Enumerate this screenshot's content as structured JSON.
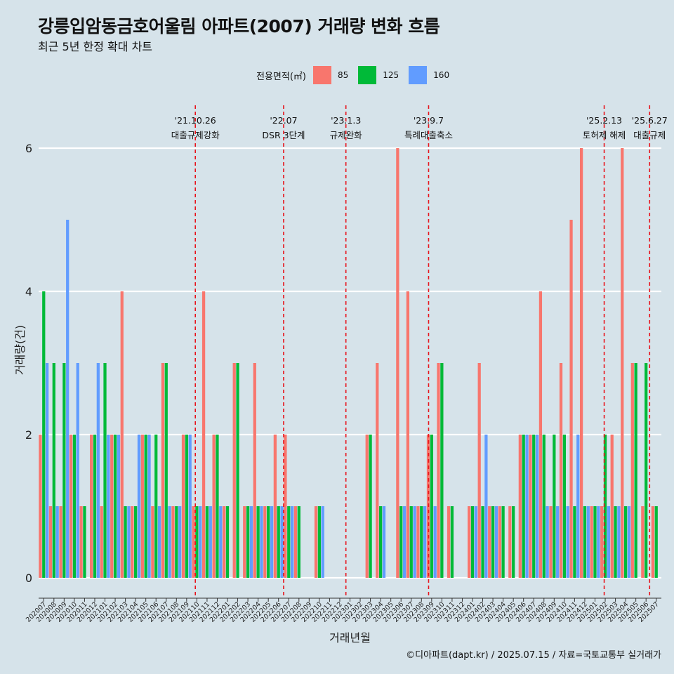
{
  "title": "강릉입암동금호어울림 아파트(2007) 거래량 변화 흐름",
  "subtitle": "최근 5년 한정 확대 차트",
  "caption": "©디아파트(dapt.kr) / 2025.07.15 / 자료=국토교통부 실거래가",
  "legend": {
    "title": "전용면적(㎡)",
    "items": [
      {
        "label": "85",
        "color": "#f8766d"
      },
      {
        "label": "125",
        "color": "#00ba38"
      },
      {
        "label": "160",
        "color": "#619cff"
      }
    ]
  },
  "chart_data": {
    "type": "bar",
    "xlabel": "거래년월",
    "ylabel": "거래량(건)",
    "ylim": [
      0,
      6
    ],
    "yticks": [
      0,
      2,
      4,
      6
    ],
    "grid": true,
    "legend_position": "top",
    "series_names": [
      "85",
      "125",
      "160"
    ],
    "categories": [
      "202007",
      "202008",
      "202009",
      "202010",
      "202011",
      "202012",
      "202101",
      "202102",
      "202103",
      "202104",
      "202105",
      "202106",
      "202107",
      "202108",
      "202109",
      "202110",
      "202111",
      "202112",
      "202201",
      "202202",
      "202203",
      "202204",
      "202205",
      "202206",
      "202207",
      "202208",
      "202209",
      "202210",
      "202211",
      "202212",
      "202301",
      "202302",
      "202303",
      "202304",
      "202305",
      "202306",
      "202307",
      "202308",
      "202309",
      "202310",
      "202311",
      "202312",
      "202401",
      "202402",
      "202403",
      "202404",
      "202405",
      "202406",
      "202407",
      "202408",
      "202409",
      "202410",
      "202411",
      "202412",
      "202501",
      "202502",
      "202503",
      "202504",
      "202505",
      "202506",
      "202507"
    ],
    "values": [
      [
        2,
        4,
        3
      ],
      [
        1,
        3,
        1
      ],
      [
        1,
        3,
        5
      ],
      [
        2,
        2,
        3
      ],
      [
        1,
        1,
        0
      ],
      [
        2,
        2,
        3
      ],
      [
        1,
        3,
        2
      ],
      [
        2,
        2,
        2
      ],
      [
        4,
        1,
        1
      ],
      [
        1,
        1,
        2
      ],
      [
        2,
        2,
        2
      ],
      [
        1,
        2,
        1
      ],
      [
        3,
        3,
        1
      ],
      [
        1,
        1,
        1
      ],
      [
        2,
        2,
        2
      ],
      [
        1,
        1,
        1
      ],
      [
        4,
        1,
        1
      ],
      [
        2,
        2,
        1
      ],
      [
        1,
        1,
        0
      ],
      [
        3,
        3,
        0
      ],
      [
        1,
        1,
        1
      ],
      [
        3,
        1,
        1
      ],
      [
        1,
        1,
        1
      ],
      [
        2,
        1,
        1
      ],
      [
        2,
        1,
        1
      ],
      [
        1,
        1,
        0
      ],
      [
        0,
        0,
        0
      ],
      [
        1,
        1,
        1
      ],
      [
        0,
        0,
        0
      ],
      [
        0,
        0,
        0
      ],
      [
        0,
        0,
        0
      ],
      [
        0,
        0,
        0
      ],
      [
        2,
        2,
        0
      ],
      [
        3,
        1,
        1
      ],
      [
        0,
        0,
        0
      ],
      [
        6,
        1,
        1
      ],
      [
        4,
        1,
        1
      ],
      [
        1,
        1,
        1
      ],
      [
        2,
        2,
        1
      ],
      [
        3,
        3,
        0
      ],
      [
        1,
        1,
        0
      ],
      [
        0,
        0,
        0
      ],
      [
        1,
        1,
        1
      ],
      [
        3,
        1,
        2
      ],
      [
        1,
        1,
        1
      ],
      [
        1,
        1,
        0
      ],
      [
        1,
        1,
        0
      ],
      [
        2,
        2,
        2
      ],
      [
        2,
        2,
        2
      ],
      [
        4,
        2,
        1
      ],
      [
        1,
        2,
        1
      ],
      [
        3,
        2,
        1
      ],
      [
        5,
        1,
        2
      ],
      [
        6,
        1,
        1
      ],
      [
        1,
        1,
        1
      ],
      [
        1,
        2,
        1
      ],
      [
        2,
        1,
        1
      ],
      [
        6,
        1,
        1
      ],
      [
        3,
        3,
        0
      ],
      [
        1,
        3,
        0
      ],
      [
        1,
        1,
        0
      ]
    ],
    "annotations": [
      {
        "date": "'21.10.26",
        "label": "대출규제강화",
        "x": "202110",
        "offset": 0.35
      },
      {
        "date": "'22.07",
        "label": "DSR 3단계",
        "x": "202207",
        "offset": 0
      },
      {
        "date": "'23.1.3",
        "label": "규제완화",
        "x": "202301",
        "offset": 0.1
      },
      {
        "date": "'23.9.7",
        "label": "특례대출축소",
        "x": "202309",
        "offset": 0.2
      },
      {
        "date": "'25.2.13",
        "label": "토허제 해제",
        "x": "202502",
        "offset": 0.4
      },
      {
        "date": "'25.6.27",
        "label": "대출규제",
        "x": "202506",
        "offset": 0.85
      }
    ]
  }
}
